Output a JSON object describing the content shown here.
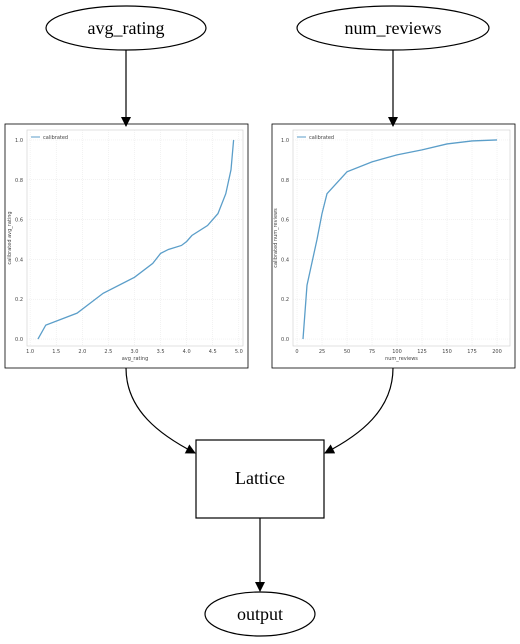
{
  "nodes": [
    {
      "label": "avg_rating"
    },
    {
      "label": "num_reviews"
    },
    {
      "label": "Lattice"
    },
    {
      "label": "output"
    }
  ],
  "chart_data": [
    {
      "type": "line",
      "x_label": "avg_rating",
      "y_label": "calibrated avg_rating",
      "x": [
        1.15,
        1.3,
        1.9,
        2.4,
        3.0,
        3.35,
        3.5,
        3.65,
        3.9,
        4.0,
        4.1,
        4.4,
        4.6,
        4.75,
        4.85,
        4.9
      ],
      "series": [
        {
          "name": "calibrated",
          "color": "#5b9ec9",
          "values": [
            0.0,
            0.07,
            0.13,
            0.23,
            0.31,
            0.38,
            0.43,
            0.45,
            0.47,
            0.49,
            0.52,
            0.57,
            0.63,
            0.73,
            0.85,
            1.0
          ]
        }
      ],
      "xlim": [
        0.94,
        5.08
      ],
      "ylim": [
        -0.035,
        1.05
      ],
      "xticks": [
        {
          "value": 1,
          "label": "1.0"
        },
        1.5,
        {
          "value": 2,
          "label": "2.0"
        },
        2.5,
        {
          "value": 3,
          "label": "3.0"
        },
        3.5,
        {
          "value": 4,
          "label": "4.0"
        },
        4.5,
        {
          "value": 5,
          "label": "5.0"
        }
      ],
      "yticks": [
        {
          "value": 0,
          "label": "0.0"
        },
        0.2,
        0.4,
        0.6,
        0.8,
        {
          "value": 1,
          "label": "1.0"
        }
      ],
      "grid": true,
      "legend": "upper left"
    },
    {
      "type": "line",
      "x_label": "num_reviews",
      "y_label": "calibrated num_reviews",
      "x": [
        6,
        10,
        20,
        25,
        30,
        50,
        75,
        100,
        125,
        150,
        175,
        200
      ],
      "series": [
        {
          "name": "calibrated",
          "color": "#5b9ec9",
          "values": [
            0.0,
            0.27,
            0.5,
            0.63,
            0.73,
            0.84,
            0.89,
            0.925,
            0.95,
            0.98,
            0.995,
            1.0
          ]
        }
      ],
      "xlim": [
        -4,
        213
      ],
      "ylim": [
        -0.035,
        1.05
      ],
      "xticks": [
        0,
        25,
        50,
        75,
        100,
        125,
        150,
        175,
        200
      ],
      "yticks": [
        {
          "value": 0,
          "label": "0.0"
        },
        0.2,
        0.4,
        0.6,
        0.8,
        {
          "value": 1,
          "label": "1.0"
        }
      ],
      "grid": true,
      "legend": "upper left"
    }
  ]
}
